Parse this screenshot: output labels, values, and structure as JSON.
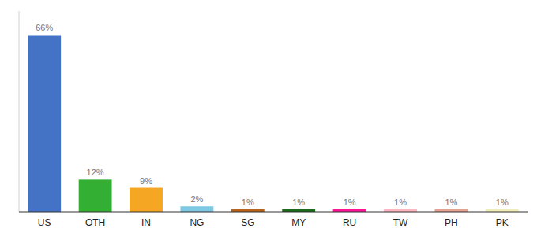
{
  "chart_data": {
    "type": "bar",
    "categories": [
      "US",
      "OTH",
      "IN",
      "NG",
      "SG",
      "MY",
      "RU",
      "TW",
      "PH",
      "PK"
    ],
    "values": [
      66,
      12,
      9,
      2,
      1,
      1,
      1,
      1,
      1,
      1
    ],
    "value_labels": [
      "66%",
      "12%",
      "9%",
      "2%",
      "1%",
      "1%",
      "1%",
      "1%",
      "1%",
      "1%"
    ],
    "colors": [
      "#4472C4",
      "#33B033",
      "#F5A623",
      "#7EC8E3",
      "#B8621A",
      "#1A6B1A",
      "#FF1493",
      "#FFB6C1",
      "#E8A090",
      "#F0EEB8"
    ],
    "ylim": [
      0,
      75
    ],
    "data_labels": true,
    "tick_labels": "x"
  }
}
